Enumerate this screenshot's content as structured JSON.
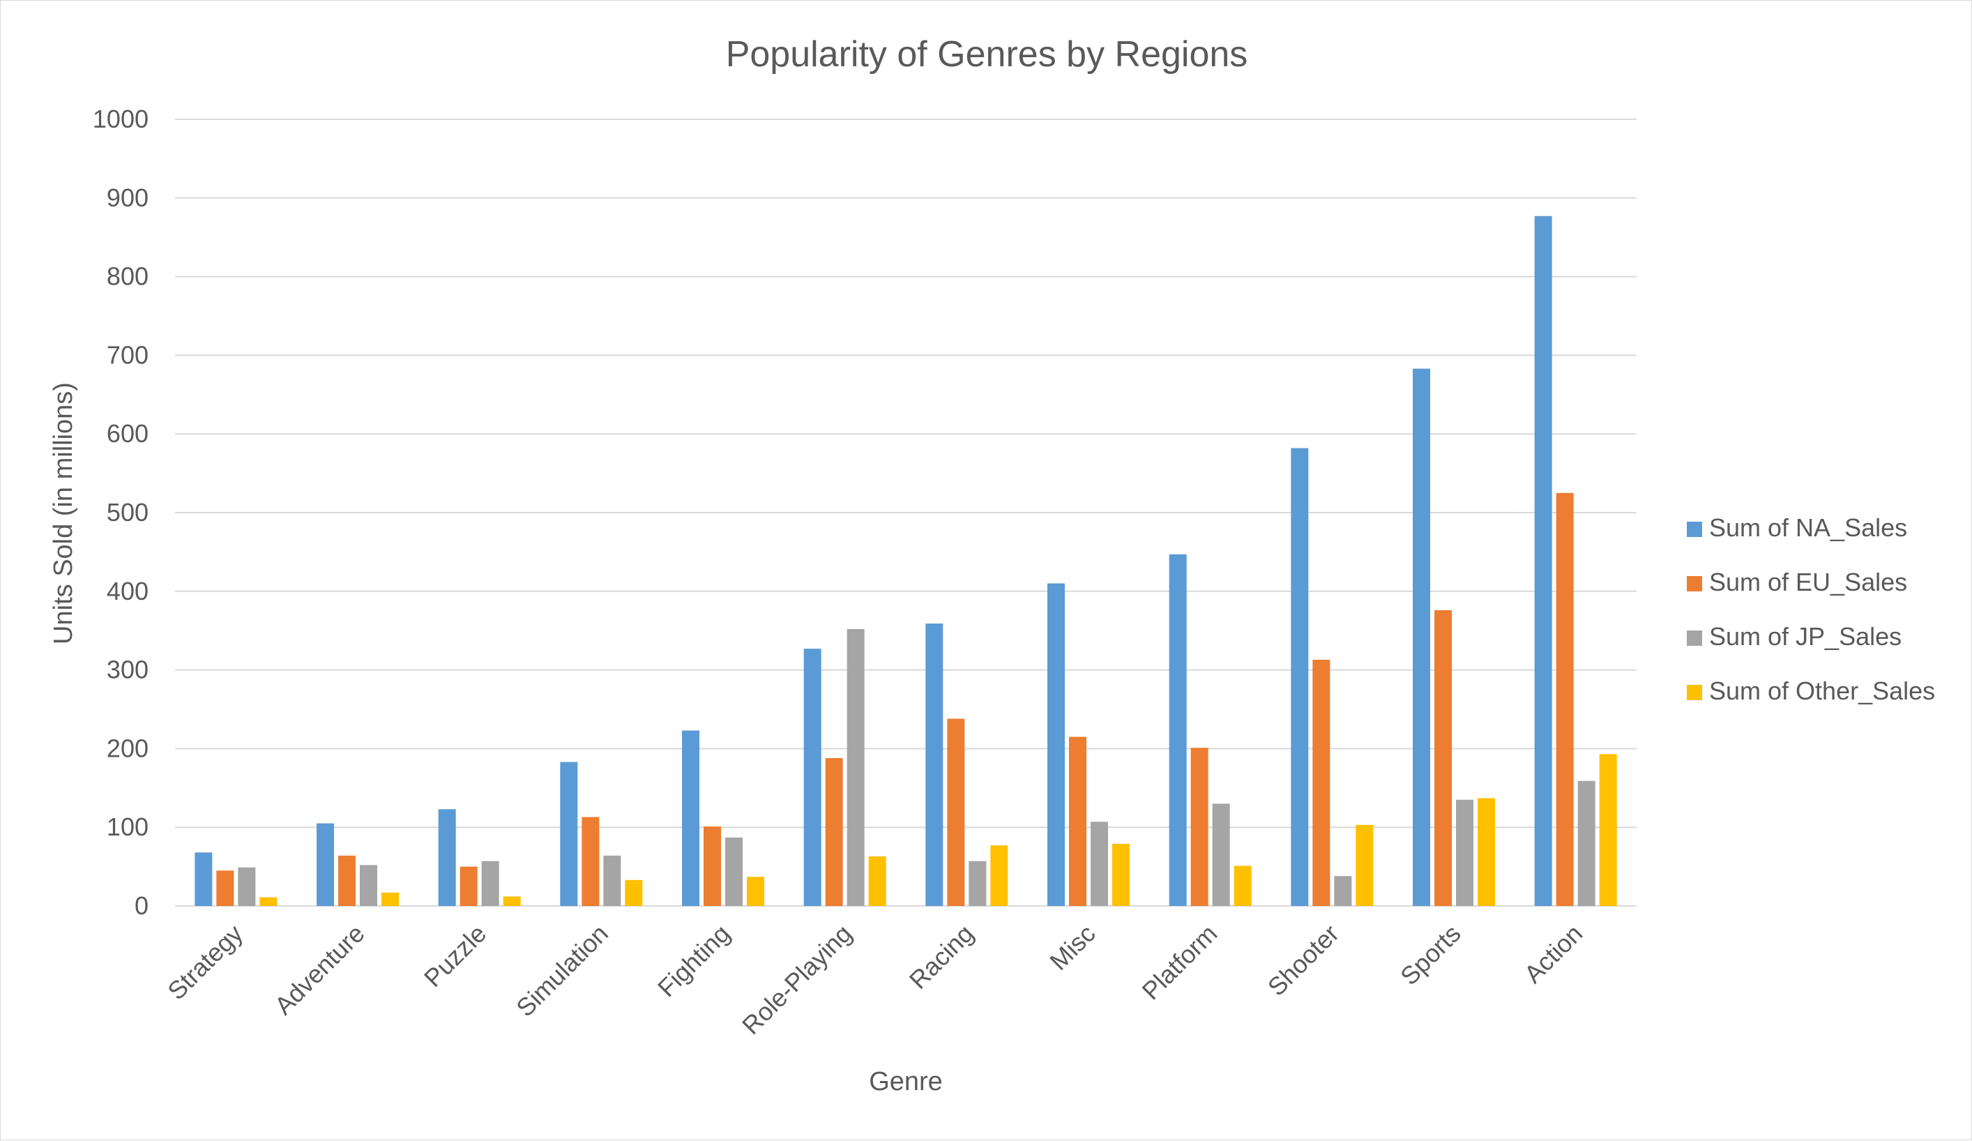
{
  "chart_data": {
    "type": "bar",
    "title": "Popularity of Genres by Regions",
    "xlabel": "Genre",
    "ylabel": "Units Sold (in millions)",
    "ylim": [
      0,
      1000
    ],
    "ytick_step": 100,
    "yticks": [
      "0",
      "100",
      "200",
      "300",
      "400",
      "500",
      "600",
      "700",
      "800",
      "900",
      "1000"
    ],
    "grid": true,
    "legend_position": "right",
    "categories": [
      "Strategy",
      "Adventure",
      "Puzzle",
      "Simulation",
      "Fighting",
      "Role-Playing",
      "Racing",
      "Misc",
      "Platform",
      "Shooter",
      "Sports",
      "Action"
    ],
    "series": [
      {
        "name": "Sum of NA_Sales",
        "color": "#5b9bd5",
        "values": [
          68,
          105,
          123,
          183,
          223,
          327,
          359,
          410,
          447,
          582,
          683,
          877
        ]
      },
      {
        "name": "Sum of EU_Sales",
        "color": "#ed7d31",
        "values": [
          45,
          64,
          50,
          113,
          101,
          188,
          238,
          215,
          201,
          313,
          376,
          525
        ]
      },
      {
        "name": "Sum of JP_Sales",
        "color": "#a5a5a5",
        "values": [
          49,
          52,
          57,
          64,
          87,
          352,
          57,
          107,
          130,
          38,
          135,
          159
        ]
      },
      {
        "name": "Sum of Other_Sales",
        "color": "#ffc000",
        "values": [
          11,
          17,
          12,
          33,
          37,
          63,
          77,
          79,
          51,
          103,
          137,
          193
        ]
      }
    ]
  }
}
